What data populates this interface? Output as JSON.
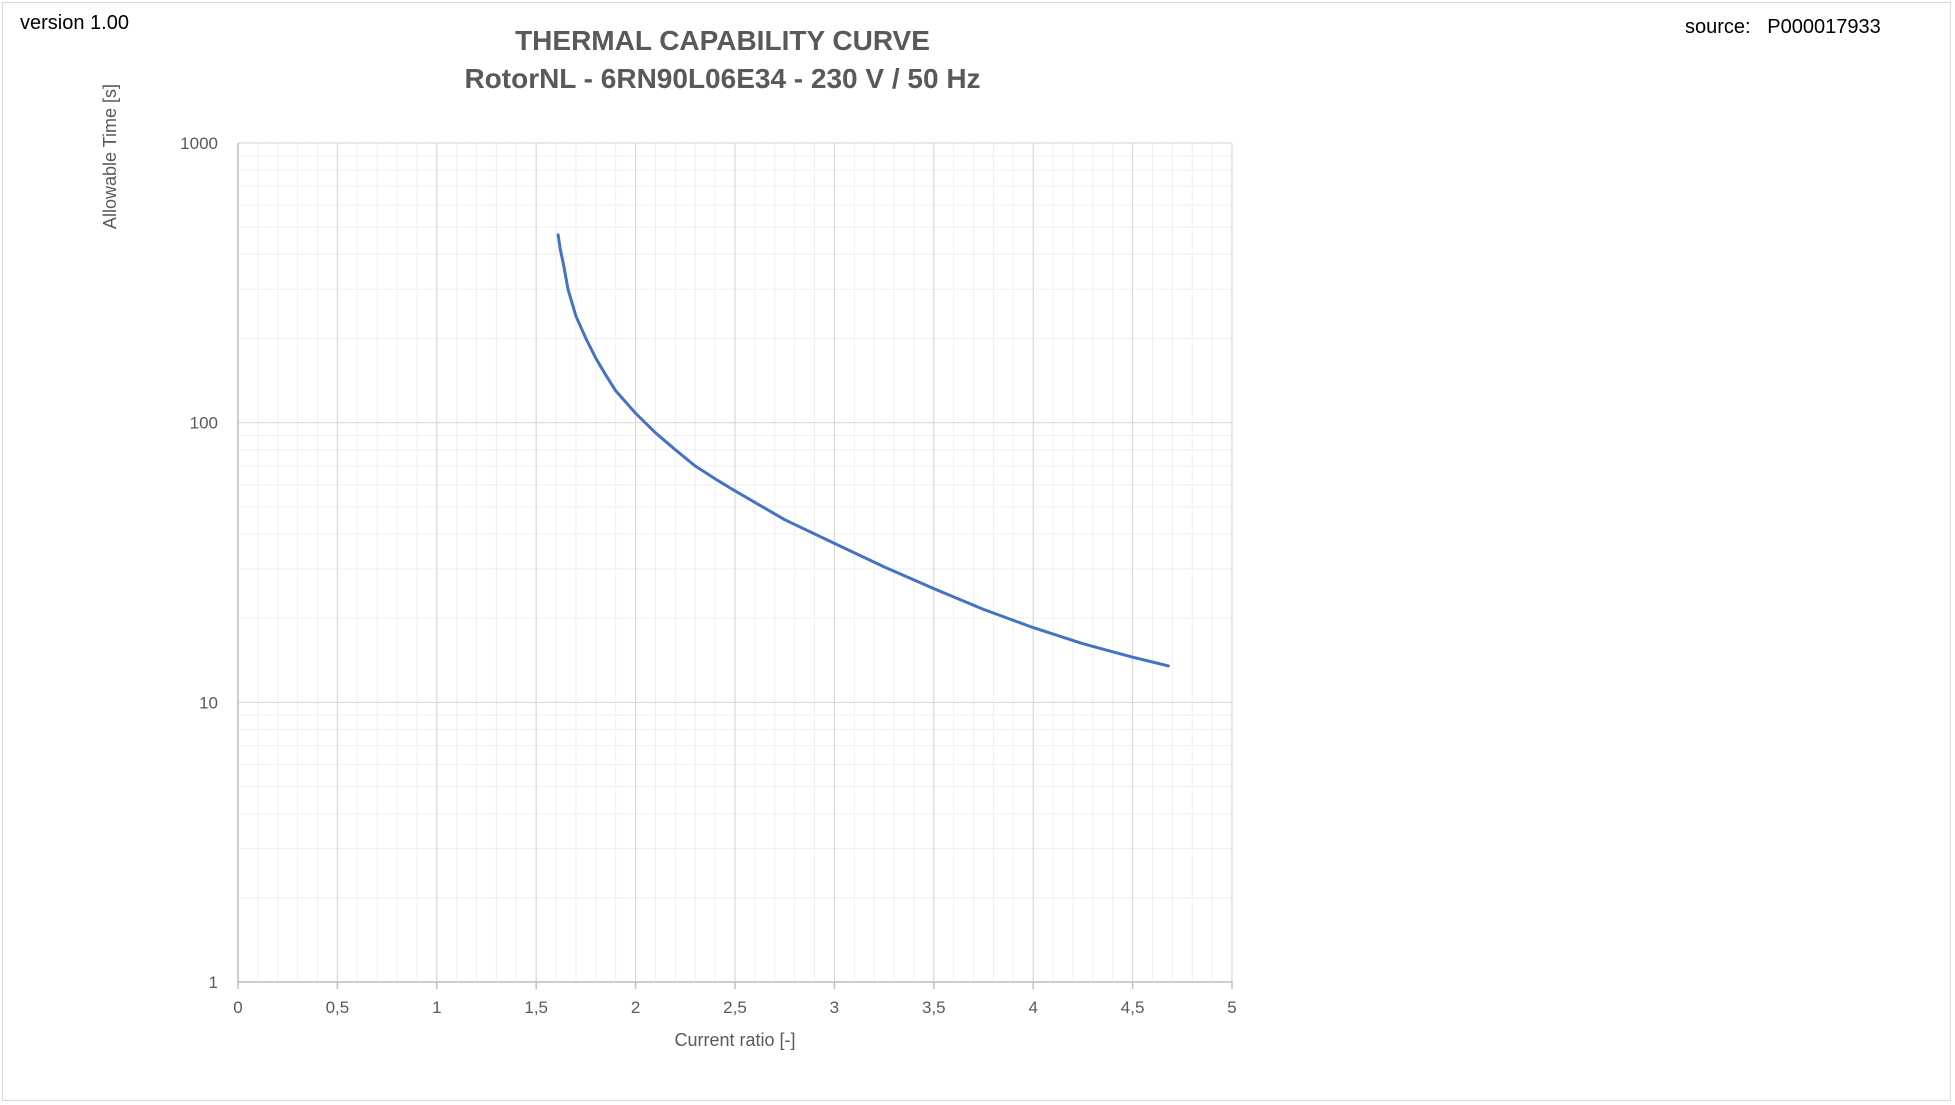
{
  "header": {
    "version": "version 1.00",
    "source": "source:   P000017933"
  },
  "colors": {
    "series": "#4472c4",
    "grid_major": "#d9d9d9",
    "grid_minor": "#efefef"
  },
  "chart_data": {
    "type": "line",
    "title": "THERMAL CAPABILITY CURVE",
    "subtitle": "RotorNL - 6RN90L06E34 - 230 V / 50 Hz",
    "xlabel": "Current ratio [-]",
    "ylabel": "Allowable Time [s]",
    "xlim": [
      0,
      5
    ],
    "ylim": [
      1,
      1000
    ],
    "yscale": "log",
    "grid": true,
    "xticks": [
      "0",
      "0,5",
      "1",
      "1,5",
      "2",
      "2,5",
      "3",
      "3,5",
      "4",
      "4,5",
      "5"
    ],
    "yticks": [
      "1",
      "10",
      "100",
      "1000"
    ],
    "series": [
      {
        "x": [
          1.61,
          1.62,
          1.64,
          1.66,
          1.7,
          1.75,
          1.8,
          1.85,
          1.9,
          2.0,
          2.1,
          2.2,
          2.3,
          2.4,
          2.5,
          2.75,
          3.0,
          3.25,
          3.5,
          3.75,
          4.0,
          4.25,
          4.5,
          4.68
        ],
        "y": [
          470,
          420,
          360,
          300,
          240,
          200,
          170,
          148,
          130,
          108,
          92,
          80,
          70,
          63,
          57,
          45,
          37,
          30.5,
          25.5,
          21.5,
          18.5,
          16.2,
          14.5,
          13.5
        ]
      }
    ]
  }
}
